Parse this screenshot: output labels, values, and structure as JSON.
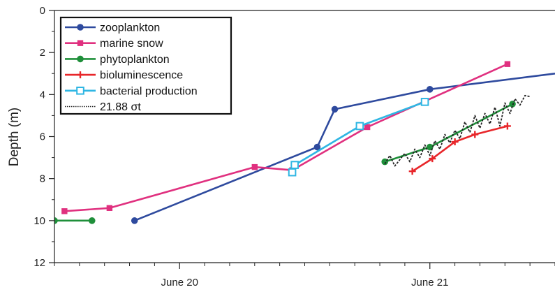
{
  "chart_data": {
    "type": "line",
    "title": "",
    "xlabel": "",
    "ylabel": "Depth (m)",
    "x_domain": [
      -0.5,
      1.5
    ],
    "ylim": [
      12,
      0
    ],
    "y_inverted": true,
    "x_ticks": [
      {
        "x": 0,
        "label": "June 20"
      },
      {
        "x": 1,
        "label": "June 21"
      }
    ],
    "x_minor_step": 0.1,
    "y_ticks": [
      0,
      2,
      4,
      6,
      8,
      10,
      12
    ],
    "y_minor_step": 1,
    "grid": false,
    "legend_position": "top-left",
    "series": [
      {
        "name": "zooplankton",
        "color": "#2e4a9e",
        "marker": "circle",
        "dashed": false,
        "x": [
          -0.18,
          0.55,
          0.62,
          1.0,
          1.5
        ],
        "y": [
          10.0,
          6.5,
          4.7,
          3.75,
          3.0
        ]
      },
      {
        "name": "marine snow",
        "color": "#e0307f",
        "marker": "square",
        "dashed": false,
        "x": [
          -0.46,
          -0.28,
          0.3,
          0.45,
          0.75,
          1.31
        ],
        "y": [
          9.55,
          9.4,
          7.45,
          7.6,
          5.55,
          2.55
        ]
      },
      {
        "name": "phytoplankton",
        "color": "#1f8f3a",
        "marker": "circle",
        "dashed": false,
        "segments": [
          {
            "x": [
              -0.5,
              -0.35
            ],
            "y": [
              10.0,
              10.0
            ]
          },
          {
            "x": [
              0.82,
              1.0,
              1.33
            ],
            "y": [
              7.2,
              6.5,
              4.45
            ]
          }
        ]
      },
      {
        "name": "bioluminescence",
        "color": "#e8262a",
        "marker": "plus",
        "dashed": false,
        "x": [
          0.93,
          1.01,
          1.1,
          1.18,
          1.31
        ],
        "y": [
          7.65,
          7.05,
          6.25,
          5.9,
          5.5
        ]
      },
      {
        "name": "bacterial production",
        "color": "#2fb6e3",
        "marker": "open-square",
        "dashed": false,
        "x": [
          0.45,
          0.46,
          0.72,
          0.98
        ],
        "y": [
          7.7,
          7.35,
          5.5,
          4.35
        ]
      },
      {
        "name": "21.88 σt",
        "color": "#222222",
        "marker": "none",
        "dashed": true,
        "x": [
          0.82,
          0.84,
          0.86,
          0.88,
          0.9,
          0.92,
          0.94,
          0.96,
          0.98,
          1.0,
          1.02,
          1.04,
          1.06,
          1.08,
          1.1,
          1.12,
          1.14,
          1.16,
          1.18,
          1.2,
          1.22,
          1.24,
          1.26,
          1.28,
          1.3,
          1.32,
          1.34,
          1.36,
          1.38,
          1.4
        ],
        "y": [
          7.3,
          6.9,
          7.4,
          7.1,
          6.8,
          7.2,
          6.6,
          7.0,
          6.4,
          6.9,
          6.2,
          6.6,
          5.9,
          6.3,
          5.7,
          6.1,
          5.3,
          5.8,
          5.0,
          5.6,
          4.9,
          5.4,
          4.6,
          5.5,
          4.4,
          4.9,
          4.2,
          4.5,
          4.05,
          4.1
        ]
      }
    ]
  }
}
